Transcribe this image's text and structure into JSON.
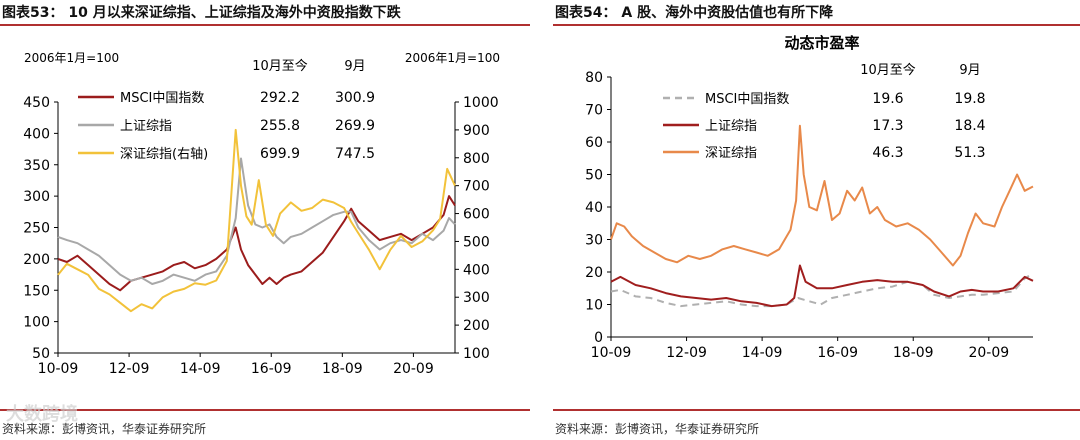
{
  "charts": [
    {
      "fig_title": "图表53：  10 月以来深证综指、上证综指及海外中资股指数下跌",
      "source": "资料来源：彭博资讯，华泰证券研究所",
      "watermark": "大数跨境",
      "chart_data": {
        "type": "line",
        "title": "",
        "left_axis_label": "2006年1月=100",
        "right_axis_label": "2006年1月=100",
        "table_header": [
          "10月至今",
          "9月"
        ],
        "xticks": [
          "10-09",
          "12-09",
          "14-09",
          "16-09",
          "18-09",
          "20-09"
        ],
        "x_range": [
          2009.75,
          2020.92
        ],
        "ylim_left": [
          50,
          450
        ],
        "yticks_left": [
          "50",
          "100",
          "150",
          "200",
          "250",
          "300",
          "350",
          "400",
          "450"
        ],
        "ylim_right": [
          100,
          1000
        ],
        "yticks_right": [
          "100",
          "200",
          "300",
          "400",
          "500",
          "600",
          "700",
          "800",
          "900",
          "1000"
        ],
        "legend_location": "top-left",
        "series": [
          {
            "name": "MSCI中国指数",
            "color": "#9b1c1c",
            "dash": "",
            "axis": "left",
            "stats": [
              "292.2",
              "300.9"
            ],
            "x": [
              2009.75,
              2010.0,
              2010.3,
              2010.6,
              2010.9,
              2011.2,
              2011.5,
              2011.8,
              2012.1,
              2012.4,
              2012.7,
              2013.0,
              2013.3,
              2013.6,
              2013.9,
              2014.2,
              2014.5,
              2014.75,
              2014.9,
              2015.1,
              2015.3,
              2015.5,
              2015.7,
              2015.9,
              2016.1,
              2016.3,
              2016.6,
              2016.9,
              2017.2,
              2017.5,
              2017.8,
              2018.0,
              2018.2,
              2018.5,
              2018.8,
              2019.1,
              2019.4,
              2019.7,
              2020.0,
              2020.3,
              2020.6,
              2020.75,
              2020.92
            ],
            "y": [
              200,
              195,
              205,
              190,
              175,
              160,
              150,
              165,
              170,
              175,
              180,
              190,
              195,
              185,
              190,
              200,
              215,
              250,
              215,
              190,
              175,
              160,
              170,
              160,
              170,
              175,
              180,
              195,
              210,
              235,
              260,
              280,
              260,
              245,
              230,
              235,
              240,
              230,
              240,
              250,
              270,
              300,
              285
            ]
          },
          {
            "name": "上证综指",
            "color": "#a8a8a8",
            "dash": "",
            "axis": "left",
            "stats": [
              "255.8",
              "269.9"
            ],
            "x": [
              2009.75,
              2010.0,
              2010.3,
              2010.6,
              2010.9,
              2011.2,
              2011.5,
              2011.8,
              2012.1,
              2012.4,
              2012.7,
              2013.0,
              2013.3,
              2013.6,
              2013.9,
              2014.2,
              2014.5,
              2014.75,
              2014.9,
              2015.1,
              2015.3,
              2015.5,
              2015.7,
              2015.9,
              2016.1,
              2016.3,
              2016.6,
              2016.9,
              2017.2,
              2017.5,
              2017.8,
              2018.0,
              2018.2,
              2018.5,
              2018.8,
              2019.1,
              2019.4,
              2019.7,
              2020.0,
              2020.3,
              2020.6,
              2020.75,
              2020.92
            ],
            "y": [
              235,
              230,
              225,
              215,
              205,
              190,
              175,
              165,
              170,
              160,
              165,
              175,
              170,
              165,
              175,
              180,
              205,
              265,
              360,
              285,
              255,
              250,
              255,
              235,
              225,
              235,
              240,
              250,
              260,
              270,
              275,
              275,
              250,
              230,
              215,
              225,
              230,
              225,
              240,
              230,
              245,
              265,
              255
            ]
          },
          {
            "name": "深证综指(右轴)",
            "color": "#f2c23a",
            "dash": "",
            "axis": "right",
            "stats": [
              "699.9",
              "747.5"
            ],
            "x": [
              2009.75,
              2010.0,
              2010.3,
              2010.6,
              2010.9,
              2011.2,
              2011.5,
              2011.8,
              2012.1,
              2012.4,
              2012.7,
              2013.0,
              2013.3,
              2013.6,
              2013.9,
              2014.2,
              2014.5,
              2014.75,
              2014.9,
              2015.05,
              2015.2,
              2015.4,
              2015.6,
              2015.8,
              2016.0,
              2016.3,
              2016.6,
              2016.9,
              2017.2,
              2017.5,
              2017.8,
              2018.0,
              2018.2,
              2018.5,
              2018.8,
              2019.1,
              2019.4,
              2019.7,
              2020.0,
              2020.3,
              2020.5,
              2020.7,
              2020.92
            ],
            "y": [
              380,
              420,
              400,
              380,
              330,
              310,
              280,
              250,
              275,
              260,
              300,
              320,
              330,
              350,
              345,
              360,
              430,
              900,
              700,
              590,
              560,
              720,
              560,
              520,
              600,
              640,
              610,
              620,
              650,
              640,
              620,
              570,
              530,
              470,
              400,
              470,
              520,
              480,
              500,
              540,
              580,
              760,
              700
            ]
          }
        ]
      }
    },
    {
      "fig_title": "图表54：  A 股、海外中资股估值也有所下降",
      "source": "资料来源：彭博资讯，华泰证券研究所",
      "chart_data": {
        "type": "line",
        "title": "动态市盈率",
        "table_header": [
          "10月至今",
          "9月"
        ],
        "xticks": [
          "10-09",
          "12-09",
          "14-09",
          "16-09",
          "18-09",
          "20-09"
        ],
        "x_range": [
          2009.75,
          2020.92
        ],
        "ylim": [
          0,
          80
        ],
        "yticks": [
          "0",
          "10",
          "20",
          "30",
          "40",
          "50",
          "60",
          "70",
          "80"
        ],
        "legend_location": "top-left",
        "series": [
          {
            "name": "MSCI中国指数",
            "color": "#b0b0b0",
            "dash": "7,5",
            "stats": [
              "19.6",
              "19.8"
            ],
            "x": [
              2009.75,
              2010.0,
              2010.4,
              2010.8,
              2011.2,
              2011.6,
              2012.0,
              2012.4,
              2012.8,
              2013.2,
              2013.6,
              2014.0,
              2014.4,
              2014.7,
              2015.0,
              2015.3,
              2015.6,
              2016.0,
              2016.4,
              2016.8,
              2017.2,
              2017.6,
              2018.0,
              2018.3,
              2018.7,
              2019.0,
              2019.3,
              2019.6,
              2020.0,
              2020.4,
              2020.7,
              2020.92
            ],
            "y": [
              14,
              14.5,
              12.5,
              12,
              10.5,
              9.5,
              10,
              10.5,
              11,
              10,
              9.5,
              9.5,
              10,
              12,
              11,
              10,
              12,
              13,
              14,
              15,
              15.5,
              17,
              16,
              13,
              12,
              12.5,
              13,
              13,
              13.5,
              14,
              18,
              19.6
            ]
          },
          {
            "name": "上证综指",
            "color": "#a01e1e",
            "dash": "",
            "stats": [
              "17.3",
              "18.4"
            ],
            "x": [
              2009.75,
              2010.0,
              2010.4,
              2010.8,
              2011.2,
              2011.6,
              2012.0,
              2012.4,
              2012.8,
              2013.2,
              2013.6,
              2014.0,
              2014.4,
              2014.6,
              2014.75,
              2014.9,
              2015.2,
              2015.6,
              2016.0,
              2016.4,
              2016.8,
              2017.2,
              2017.6,
              2018.0,
              2018.3,
              2018.7,
              2019.0,
              2019.3,
              2019.6,
              2020.0,
              2020.4,
              2020.7,
              2020.92
            ],
            "y": [
              17,
              18.5,
              16,
              15,
              13.5,
              12.5,
              12,
              11.5,
              12,
              11,
              10.5,
              9.5,
              10,
              12,
              22,
              17,
              15,
              15,
              16,
              17,
              17.5,
              17,
              17,
              16,
              14,
              12.5,
              14,
              14.5,
              14,
              14,
              15,
              18.5,
              17.3
            ]
          },
          {
            "name": "深证综指",
            "color": "#e8894a",
            "dash": "",
            "stats": [
              "46.3",
              "51.3"
            ],
            "x": [
              2009.75,
              2009.9,
              2010.1,
              2010.3,
              2010.6,
              2010.9,
              2011.2,
              2011.5,
              2011.8,
              2012.1,
              2012.4,
              2012.7,
              2013.0,
              2013.3,
              2013.6,
              2013.9,
              2014.2,
              2014.5,
              2014.65,
              2014.75,
              2014.85,
              2015.0,
              2015.2,
              2015.4,
              2015.6,
              2015.8,
              2016.0,
              2016.2,
              2016.4,
              2016.6,
              2016.8,
              2017.0,
              2017.3,
              2017.6,
              2017.9,
              2018.2,
              2018.5,
              2018.8,
              2019.0,
              2019.2,
              2019.4,
              2019.6,
              2019.9,
              2020.1,
              2020.3,
              2020.5,
              2020.7,
              2020.92
            ],
            "y": [
              30,
              35,
              34,
              31,
              28,
              26,
              24,
              23,
              25,
              24,
              25,
              27,
              28,
              27,
              26,
              25,
              27,
              33,
              42,
              65,
              50,
              40,
              39,
              48,
              36,
              38,
              45,
              42,
              46,
              38,
              40,
              36,
              34,
              35,
              33,
              30,
              26,
              22,
              25,
              32,
              38,
              35,
              34,
              40,
              45,
              50,
              45,
              46.3
            ]
          }
        ]
      }
    }
  ]
}
